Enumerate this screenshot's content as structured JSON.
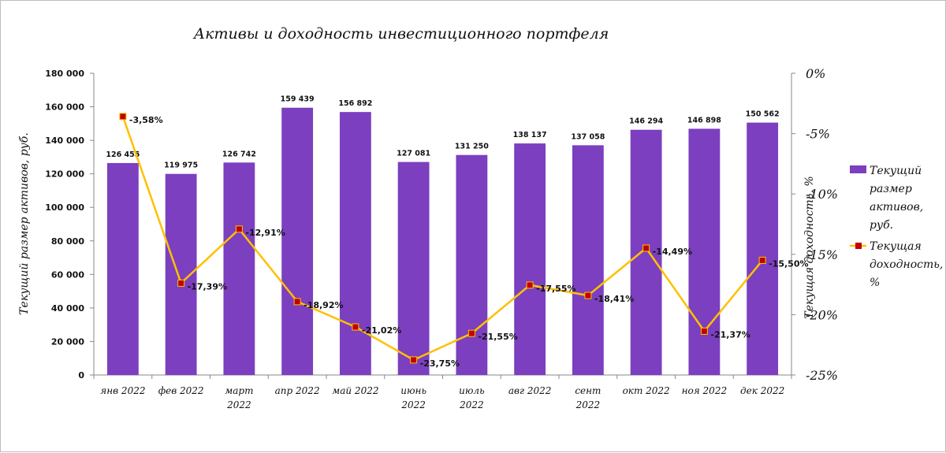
{
  "chart_data": {
    "type": "bar+line",
    "title": "Активы и доходность инвестиционного портфеля",
    "categories": [
      "янв 2022",
      "фев 2022",
      "март 2022",
      "апр 2022",
      "май 2022",
      "июнь 2022",
      "июль 2022",
      "авг 2022",
      "сент 2022",
      "окт 2022",
      "ноя 2022",
      "дек 2022"
    ],
    "series": [
      {
        "name": "Текущий размер активов, руб.",
        "type": "bar",
        "axis": "left",
        "color": "#7b3fbf",
        "values": [
          126455,
          119975,
          126742,
          159439,
          156892,
          127081,
          131250,
          138137,
          137058,
          146294,
          146898,
          150562
        ],
        "labels": [
          "126 455",
          "119 975",
          "126 742",
          "159 439",
          "156 892",
          "127 081",
          "131 250",
          "138 137",
          "137 058",
          "146 294",
          "146 898",
          "150 562"
        ]
      },
      {
        "name": "Текущая доходность, %",
        "type": "line",
        "axis": "right",
        "color": "#ffc000",
        "marker_color": "#c00000",
        "values": [
          -3.58,
          -17.39,
          -12.91,
          -18.92,
          -21.02,
          -23.75,
          -21.55,
          -17.55,
          -18.41,
          -14.49,
          -21.37,
          -15.5
        ],
        "labels": [
          "-3,58%",
          "-17,39%",
          "-12,91%",
          "-18,92%",
          "-21,02%",
          "-23,75%",
          "-21,55%",
          "-17,55%",
          "-18,41%",
          "-14,49%",
          "-21,37%",
          "-15,50%"
        ]
      }
    ],
    "ylabel": "Текущий размер активов, руб.",
    "ylabel_right": "Текущая доходность, %",
    "ylim": [
      0,
      180000
    ],
    "ylim_right": [
      -25,
      0
    ],
    "yticks": [
      0,
      20000,
      40000,
      60000,
      80000,
      100000,
      120000,
      140000,
      160000,
      180000
    ],
    "ytick_labels": [
      "0",
      "20 000",
      "40 000",
      "60 000",
      "80 000",
      "100 000",
      "120 000",
      "140 000",
      "160 000",
      "180 000"
    ],
    "yticks_right": [
      0,
      -5,
      -10,
      -15,
      -20,
      -25
    ],
    "ytick_labels_right": [
      "0%",
      "-5%",
      "-10%",
      "-15%",
      "-20%",
      "-25%"
    ],
    "legend": "right",
    "grid": false
  }
}
